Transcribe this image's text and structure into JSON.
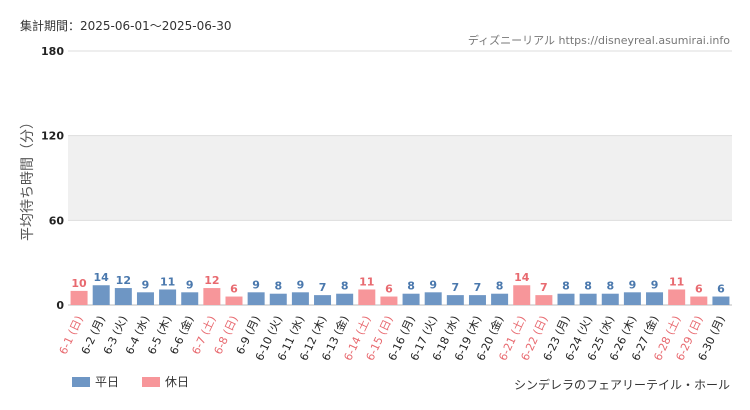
{
  "header": {
    "period": "集計期間：2025-06-01～2025-06-30",
    "credit": "ディズニーリアル https://disneyreal.asumirai.info"
  },
  "footer": {
    "attraction": "シンデレラのフェアリーテイル・ホール"
  },
  "colors": {
    "weekday_bar": "#6e96c4",
    "holiday_bar": "#f7969a",
    "weekday_label": "#4a78ad",
    "holiday_label": "#e8696f",
    "band": "#f0f0f0",
    "grid": "#dddddd",
    "axis_text": "#222222",
    "ylabel_text": "#555555"
  },
  "chart_data": {
    "type": "bar",
    "ylabel": "平均待ち時間（分）",
    "ylim": [
      0,
      180
    ],
    "yticks": [
      0,
      60,
      120,
      180
    ],
    "bands": [
      [
        60,
        120
      ]
    ],
    "grid": true,
    "legend_position": "bottom-left",
    "categories": [
      "6-1 (日)",
      "6-2 (月)",
      "6-3 (火)",
      "6-4 (水)",
      "6-5 (木)",
      "6-6 (金)",
      "6-7 (土)",
      "6-8 (日)",
      "6-9 (月)",
      "6-10 (火)",
      "6-11 (水)",
      "6-12 (木)",
      "6-13 (金)",
      "6-14 (土)",
      "6-15 (日)",
      "6-16 (月)",
      "6-17 (火)",
      "6-18 (水)",
      "6-19 (木)",
      "6-20 (金)",
      "6-21 (土)",
      "6-22 (日)",
      "6-23 (月)",
      "6-24 (火)",
      "6-25 (水)",
      "6-26 (木)",
      "6-27 (金)",
      "6-28 (土)",
      "6-29 (日)",
      "6-30 (月)"
    ],
    "values": [
      10,
      14,
      12,
      9,
      11,
      9,
      12,
      6,
      9,
      8,
      9,
      7,
      8,
      11,
      6,
      8,
      9,
      7,
      7,
      8,
      14,
      7,
      8,
      8,
      8,
      9,
      9,
      11,
      6,
      6
    ],
    "day_type": [
      "休日",
      "平日",
      "平日",
      "平日",
      "平日",
      "平日",
      "休日",
      "休日",
      "平日",
      "平日",
      "平日",
      "平日",
      "平日",
      "休日",
      "休日",
      "平日",
      "平日",
      "平日",
      "平日",
      "平日",
      "休日",
      "休日",
      "平日",
      "平日",
      "平日",
      "平日",
      "平日",
      "休日",
      "休日",
      "平日"
    ],
    "legend": [
      {
        "name": "平日",
        "key": "平日"
      },
      {
        "name": "休日",
        "key": "休日"
      }
    ]
  }
}
